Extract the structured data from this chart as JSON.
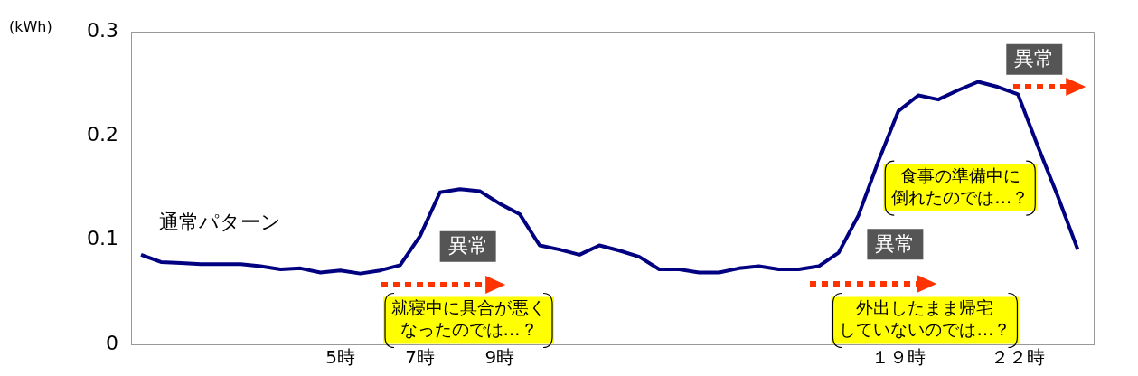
{
  "chart_data": {
    "type": "line",
    "ylabel": "(kWh)",
    "x": [
      0,
      0.5,
      1,
      1.5,
      2,
      2.5,
      3,
      3.5,
      4,
      4.5,
      5,
      5.5,
      6,
      6.5,
      7,
      7.5,
      8,
      8.5,
      9,
      9.5,
      10,
      10.5,
      11,
      11.5,
      12,
      12.5,
      13,
      13.5,
      14,
      14.5,
      15,
      15.5,
      16,
      16.5,
      17,
      17.5,
      18,
      18.5,
      19,
      19.5,
      20,
      20.5,
      21,
      21.5,
      22,
      22.5,
      23,
      23.5
    ],
    "xlim": [
      -0.25,
      23.9
    ],
    "xticks": [
      {
        "value": 5,
        "label": "5時"
      },
      {
        "value": 7,
        "label": "7時"
      },
      {
        "value": 9,
        "label": "9時"
      },
      {
        "value": 19,
        "label": "１９時"
      },
      {
        "value": 22,
        "label": "２２時"
      }
    ],
    "ylim": [
      0,
      0.3
    ],
    "yticks": [
      0,
      0.1,
      0.2,
      0.3
    ],
    "grid": "y",
    "legend": false,
    "marker": "none",
    "line_style": "solid",
    "series": [
      {
        "name": "通常パターン",
        "color": "#000080",
        "values": [
          0.086,
          0.079,
          0.078,
          0.077,
          0.077,
          0.077,
          0.075,
          0.072,
          0.073,
          0.069,
          0.071,
          0.068,
          0.071,
          0.076,
          0.104,
          0.146,
          0.149,
          0.147,
          0.135,
          0.125,
          0.095,
          0.091,
          0.086,
          0.095,
          0.09,
          0.084,
          0.072,
          0.072,
          0.069,
          0.069,
          0.073,
          0.075,
          0.072,
          0.072,
          0.075,
          0.088,
          0.124,
          0.176,
          0.224,
          0.239,
          0.235,
          0.244,
          0.252,
          0.247,
          0.24,
          0.19,
          0.142,
          0.091
        ]
      }
    ],
    "annotations": [
      "異常",
      "異常",
      "異常",
      "就寝中に具合が悪くなったのでは…？",
      "外出したまま帰宅していないのでは…？",
      "食事の準備中に倒れたのでは…？"
    ]
  }
}
